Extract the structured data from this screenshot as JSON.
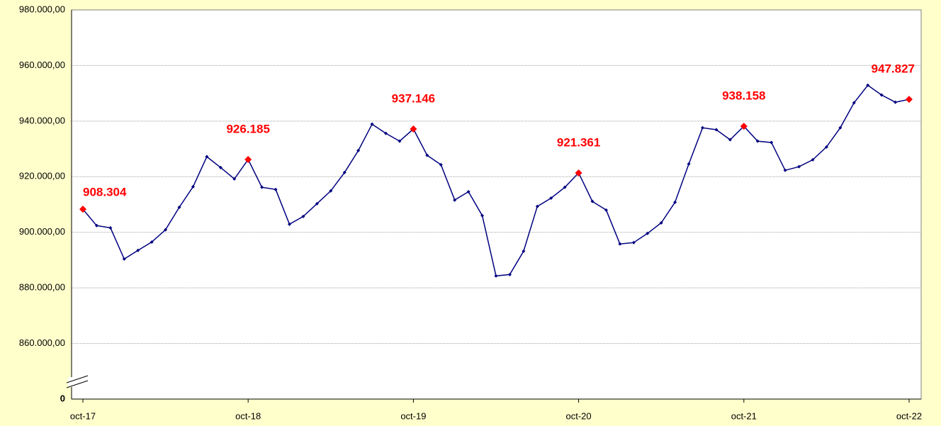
{
  "chart_data": {
    "type": "line",
    "categories": [
      "oct-17",
      null,
      null,
      null,
      null,
      null,
      null,
      null,
      null,
      null,
      null,
      null,
      "oct-18",
      null,
      null,
      null,
      null,
      null,
      null,
      null,
      null,
      null,
      null,
      null,
      "oct-19",
      null,
      null,
      null,
      null,
      null,
      null,
      null,
      null,
      null,
      null,
      null,
      "oct-20",
      null,
      null,
      null,
      null,
      null,
      null,
      null,
      null,
      null,
      null,
      null,
      "oct-21",
      null,
      null,
      null,
      null,
      null,
      null,
      null,
      null,
      null,
      null,
      null,
      "oct-22"
    ],
    "values": [
      908304,
      902400,
      901600,
      890400,
      893500,
      896500,
      900900,
      909000,
      916400,
      927200,
      923300,
      919200,
      926185,
      916200,
      915400,
      902900,
      905700,
      910300,
      914900,
      921500,
      929400,
      938900,
      935600,
      932800,
      937146,
      927700,
      924300,
      911600,
      914600,
      906000,
      884300,
      884800,
      893200,
      909300,
      912300,
      916200,
      921361,
      911100,
      908000,
      895800,
      896300,
      899600,
      903400,
      910800,
      924600,
      937600,
      936900,
      933300,
      938158,
      932800,
      932300,
      922300,
      923600,
      926100,
      930700,
      937600,
      946600,
      952900,
      949400,
      946800,
      947827
    ],
    "value_labels": [
      "908.304",
      null,
      null,
      null,
      null,
      null,
      null,
      null,
      null,
      null,
      null,
      null,
      "926.185",
      null,
      null,
      null,
      null,
      null,
      null,
      null,
      null,
      null,
      null,
      null,
      "937.146",
      null,
      null,
      null,
      null,
      null,
      null,
      null,
      null,
      null,
      null,
      null,
      "921.361",
      null,
      null,
      null,
      null,
      null,
      null,
      null,
      null,
      null,
      null,
      null,
      "938.158",
      null,
      null,
      null,
      null,
      null,
      null,
      null,
      null,
      null,
      null,
      null,
      "947.827"
    ],
    "color": "#000080",
    "highlight_color": "#ff0000",
    "ylim": [
      0,
      980000
    ],
    "axis_break": [
      0,
      860000
    ],
    "yticks": [
      0,
      {
        "value": 860000,
        "label": "860.000,00"
      },
      {
        "value": 880000,
        "label": "880.000,00"
      },
      {
        "value": 900000,
        "label": "900.000,00"
      },
      {
        "value": 920000,
        "label": "920.000,00"
      },
      {
        "value": 940000,
        "label": "940.000,00"
      },
      {
        "value": 960000,
        "label": "960.000,00"
      },
      {
        "value": 980000,
        "label": "980.000,00"
      }
    ],
    "grid": true
  }
}
